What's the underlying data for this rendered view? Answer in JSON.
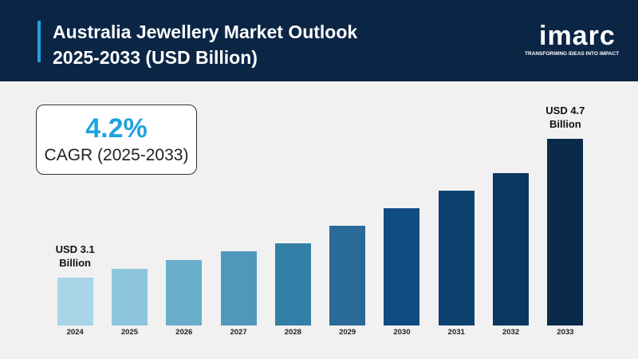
{
  "header": {
    "title": "Australia Jewellery Market Outlook 2025-2033 (USD Billion)",
    "logo": "imarc",
    "tagline": "TRANSFORMING IDEAS INTO IMPACT"
  },
  "kpi": {
    "value": "4.2%",
    "label": "CAGR (2025-2033)"
  },
  "chart_data": {
    "type": "bar",
    "categories": [
      "2024",
      "2025",
      "2026",
      "2027",
      "2028",
      "2029",
      "2030",
      "2031",
      "2032",
      "2033"
    ],
    "values": [
      3.1,
      3.2,
      3.3,
      3.4,
      3.5,
      3.7,
      3.9,
      4.1,
      4.3,
      4.7
    ],
    "value_labels": [
      "USD 3.1 Billion",
      null,
      null,
      null,
      null,
      null,
      null,
      null,
      null,
      "USD 4.7 Billion"
    ],
    "colors": [
      "#a8d5e8",
      "#8cc4de",
      "#6aaccb",
      "#4f98bb",
      "#347fa7",
      "#2a6a96",
      "#0f4c81",
      "#0c416f",
      "#0b3760",
      "#0a2a4b"
    ],
    "ylim": [
      2.55,
      4.9
    ]
  }
}
